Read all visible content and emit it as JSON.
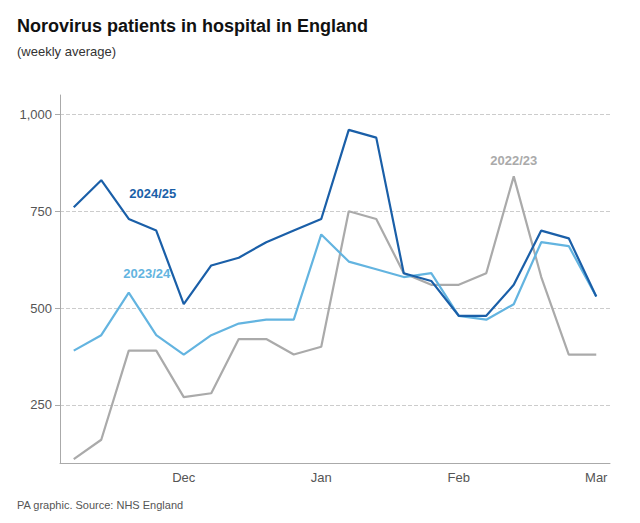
{
  "chart_data": {
    "type": "line",
    "title": "Norovirus patients in hospital in England",
    "subtitle": "(weekly average)",
    "source": "PA graphic. Source: NHS England",
    "categories": [
      null,
      null,
      null,
      null,
      "Dec",
      null,
      null,
      null,
      null,
      "Jan",
      null,
      null,
      null,
      null,
      "Feb",
      null,
      null,
      null,
      null,
      "Mar"
    ],
    "series": [
      {
        "name": "2022/23",
        "color": "#aaaaaa",
        "values": [
          110,
          160,
          390,
          390,
          270,
          280,
          420,
          420,
          380,
          400,
          750,
          730,
          590,
          560,
          560,
          590,
          840,
          580,
          380,
          380
        ]
      },
      {
        "name": "2023/24",
        "color": "#63b4e0",
        "values": [
          390,
          430,
          540,
          430,
          380,
          430,
          460,
          470,
          470,
          690,
          620,
          600,
          580,
          590,
          480,
          470,
          510,
          670,
          660,
          530
        ]
      },
      {
        "name": "2024/25",
        "color": "#1a5fa8",
        "values": [
          760,
          830,
          730,
          700,
          510,
          610,
          630,
          670,
          700,
          730,
          960,
          940,
          590,
          570,
          480,
          480,
          560,
          700,
          680,
          530
        ]
      }
    ],
    "ylim": [
      100,
      1050
    ],
    "yticks": [
      250,
      500,
      750,
      {
        "value": 1000,
        "label": "1,000"
      }
    ],
    "grid": true
  }
}
